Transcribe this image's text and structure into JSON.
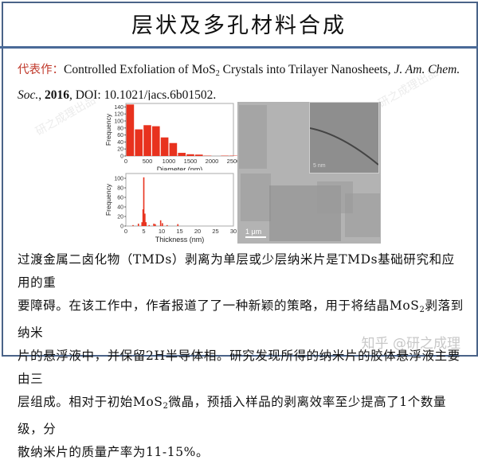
{
  "header": {
    "title": "层状及多孔材料合成"
  },
  "citation": {
    "label": "代表作：",
    "text_before": "Controlled Exfoliation of MoS",
    "sub": "2",
    "text_after": " Crystals into Trilayer Nanosheets, ",
    "journal": "J. Am. Chem. Soc.",
    "comma": ", ",
    "year": "2016",
    "doi": ", DOI: 10.1021/jacs.6b01502."
  },
  "figure": {
    "tem_scale": "1 μm",
    "inset_scale": "5 nm"
  },
  "chart_data": [
    {
      "type": "bar",
      "title": "",
      "xlabel": "Diameter (nm)",
      "ylabel": "Frequency",
      "xlim": [
        0,
        2500
      ],
      "ylim": [
        0,
        150
      ],
      "xticks": [
        0,
        500,
        1000,
        1500,
        2000,
        2500
      ],
      "yticks": [
        0,
        20,
        40,
        60,
        80,
        100,
        120,
        140
      ],
      "categories": [
        "0-200",
        "200-400",
        "400-600",
        "600-800",
        "800-1000",
        "1000-1200",
        "1200-1400",
        "1400-1600",
        "1600-1800",
        "1800-2000",
        "2000-2200",
        "2200-2400",
        "2400-2600"
      ],
      "values": [
        147,
        76,
        88,
        85,
        53,
        37,
        9,
        5,
        4,
        1,
        0,
        1,
        1
      ],
      "color": "#e8321e"
    },
    {
      "type": "bar",
      "title": "",
      "xlabel": "Thickness (nm)",
      "ylabel": "Frequency",
      "xlim": [
        0,
        30
      ],
      "ylim": [
        0,
        110
      ],
      "xticks": [
        0,
        5,
        10,
        15,
        20,
        25,
        30
      ],
      "yticks": [
        0,
        20,
        40,
        60,
        80,
        100
      ],
      "x": [
        2,
        3.5,
        4.5,
        4.8,
        5.0,
        5.3,
        5.6,
        6.5,
        7.8,
        8.2,
        9.7,
        10.2,
        11.5,
        14.5
      ],
      "values": [
        2,
        5,
        8,
        35,
        102,
        26,
        8,
        2,
        5,
        4,
        12,
        6,
        2,
        4
      ],
      "color": "#e8321e"
    }
  ],
  "body": {
    "line1": "过渡金属二卤化物（TMDs）剥离为单层或少层纳米片是TMDs基础研究和应用的重",
    "line2a": "要障碍。在该工作中，作者报道了了一种新颖的策略，用于将结晶MoS",
    "line2sub": "2",
    "line2b": "剥落到纳米",
    "line3": "片的悬浮液中，并保留2H半导体相。研究发现所得的纳米片的胶体悬浮液主要由三",
    "line4a": "层组成。相对于初始MoS",
    "line4sub": "2",
    "line4b": "微晶，预插入样品的剥离效率至少提高了1个数量级，分",
    "line5": "散纳米片的质量产率为11-15%。"
  },
  "watermark": {
    "text": "知乎 @研之成理",
    "diag": "研之成理出品"
  }
}
